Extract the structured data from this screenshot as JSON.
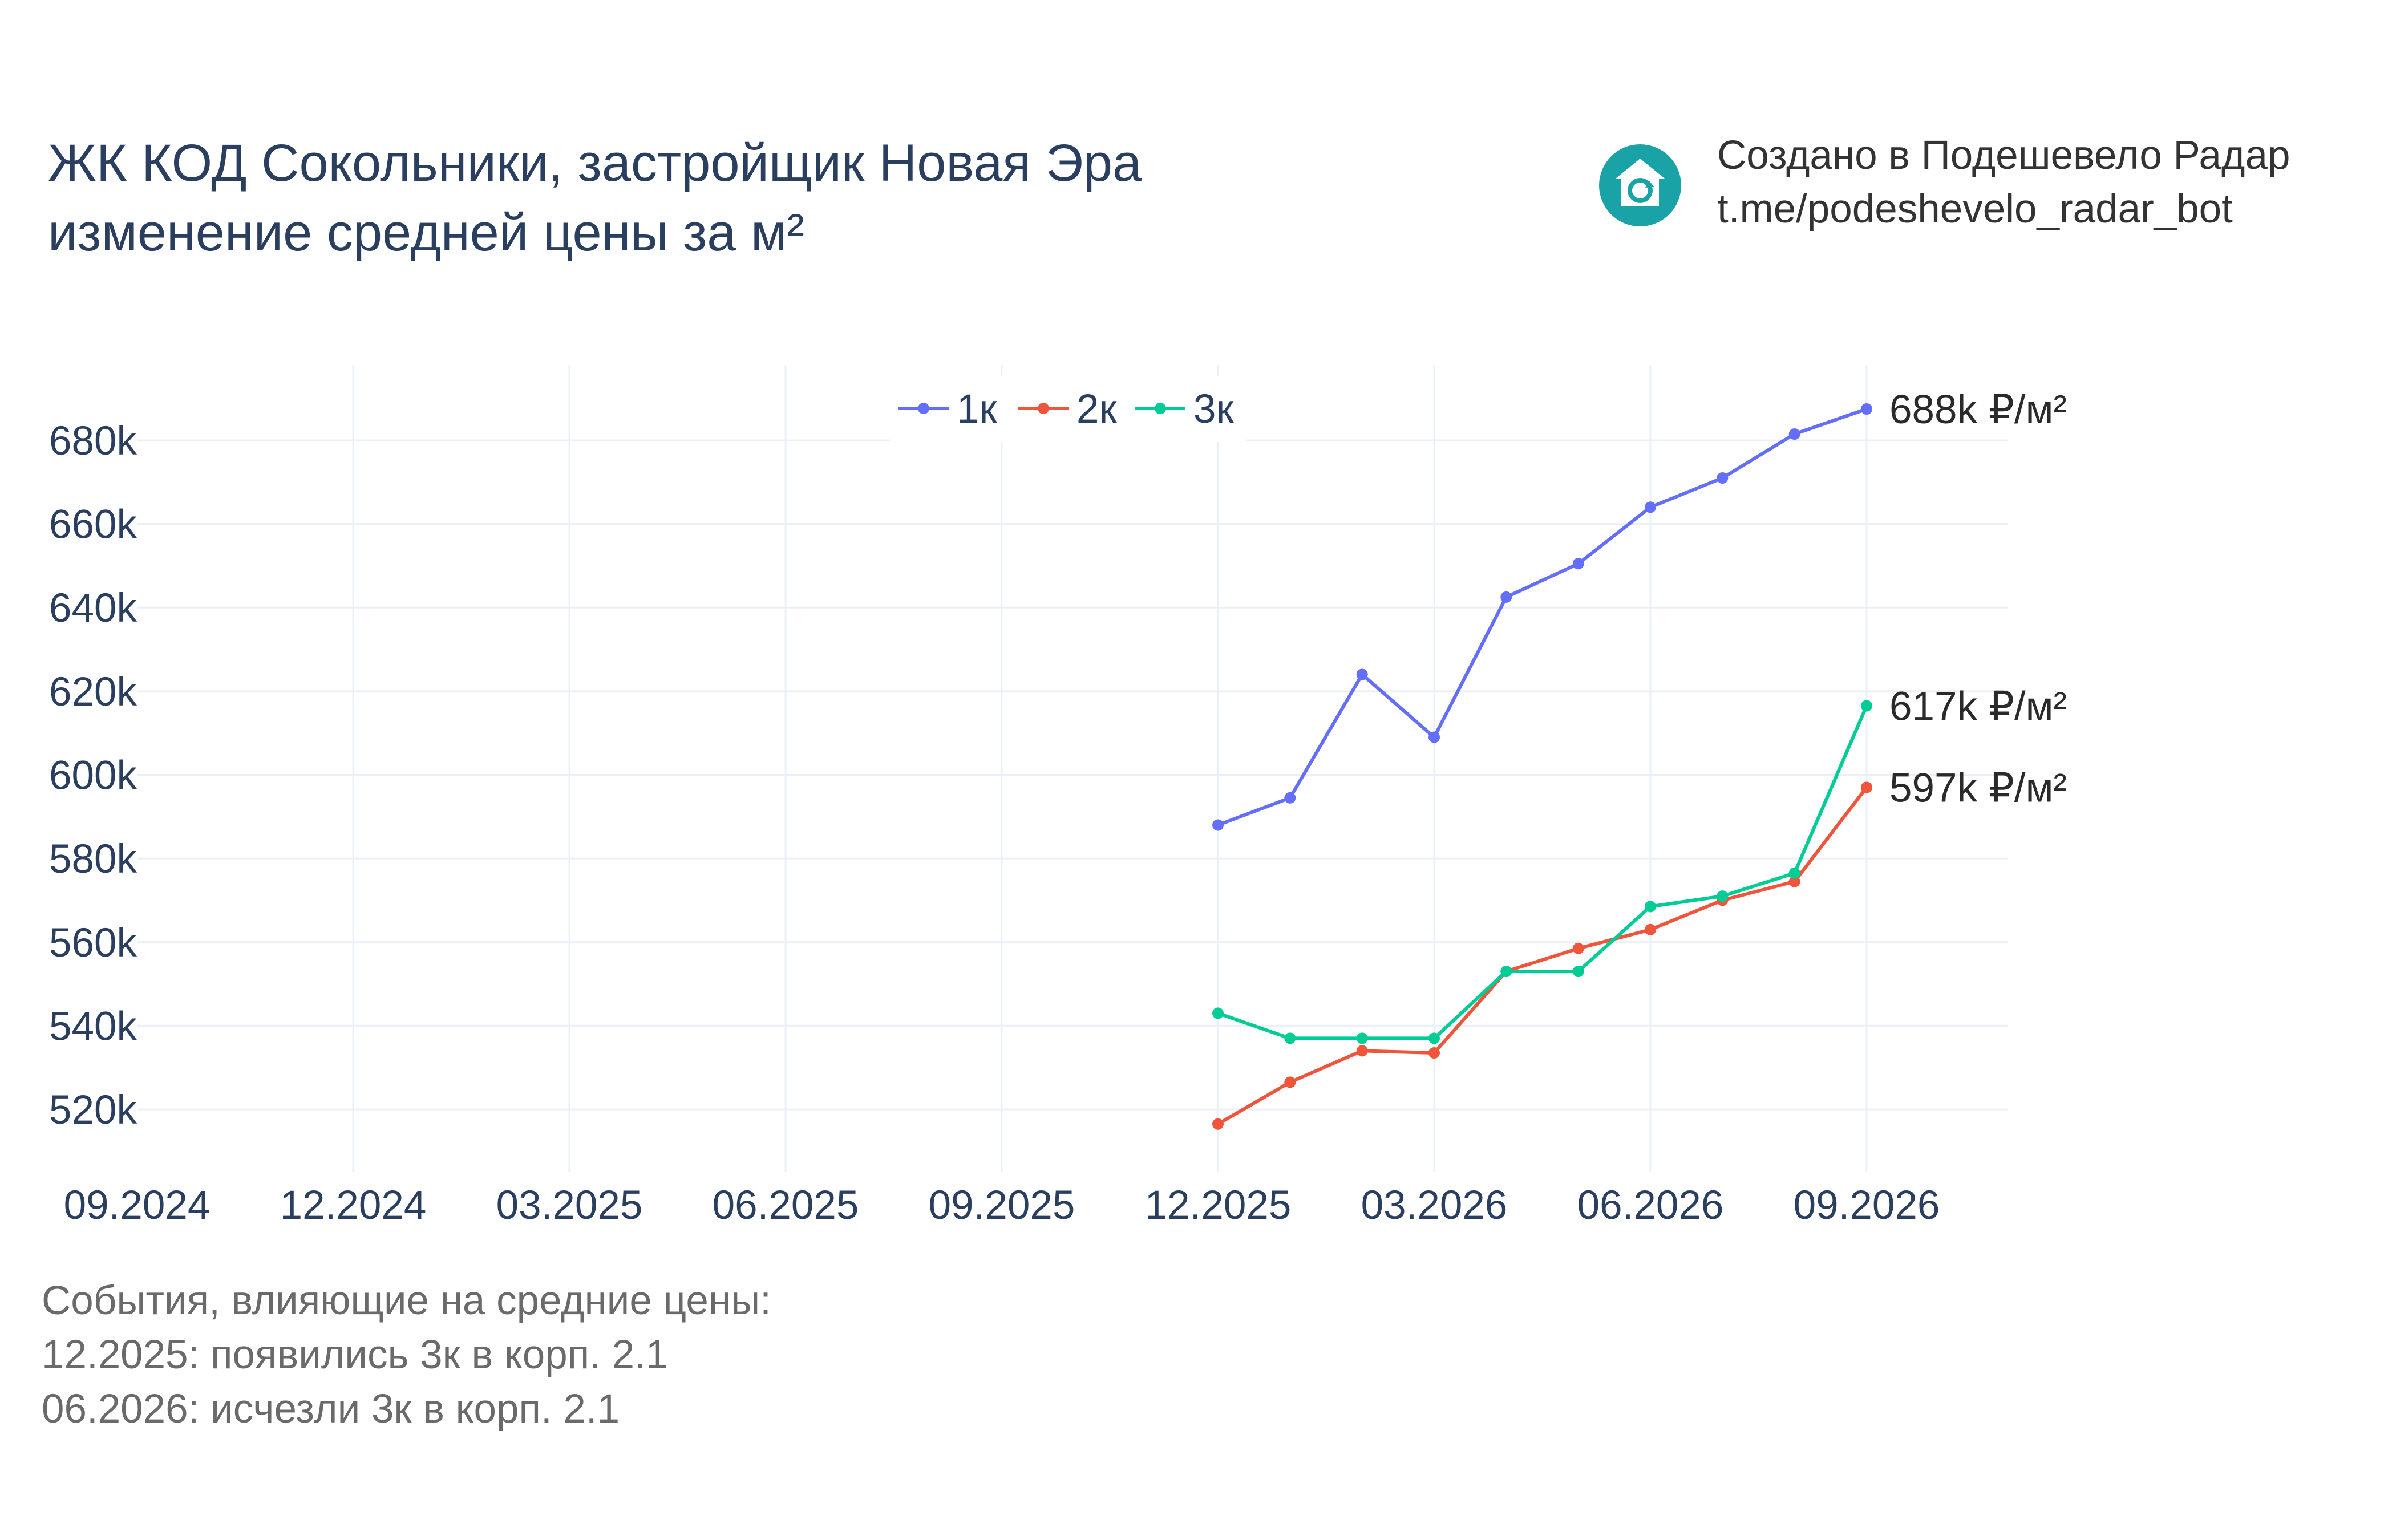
{
  "title_line1": "ЖК КОД Сокольники, застройщик Новая Эра",
  "title_line2": "изменение средней цены за м²",
  "brand": {
    "line1": "Создано в Подешевело Радар",
    "line2": "t.me/podeshevelo_radar_bot",
    "icon": "house-refresh-icon",
    "icon_color": "#1aa3a6"
  },
  "notes": {
    "header": "События, влияющие на средние цены:",
    "items": [
      "12.2025: появились 3к в корп. 2.1",
      "06.2026: исчезли 3к в корп. 2.1"
    ]
  },
  "chart_data": {
    "type": "line",
    "grid": true,
    "legend_placement": "top-center",
    "x_range": [
      "2024-09",
      "2026-11"
    ],
    "ylim": [
      505000,
      698000
    ],
    "x_ticks": [
      "09.2024",
      "12.2024",
      "03.2025",
      "06.2025",
      "09.2025",
      "12.2025",
      "03.2026",
      "06.2026",
      "09.2026"
    ],
    "y_ticks": [
      "520k",
      "540k",
      "560k",
      "580k",
      "600k",
      "620k",
      "640k",
      "660k",
      "680k"
    ],
    "x": [
      "2025-12",
      "2026-01",
      "2026-02",
      "2026-03",
      "2026-04",
      "2026-05",
      "2026-06",
      "2026-07",
      "2026-08",
      "2026-09"
    ],
    "series": [
      {
        "name": "1к",
        "color": "#636efa",
        "values": [
          588000,
          594500,
          624000,
          609000,
          642500,
          650500,
          664000,
          671000,
          681500,
          687500
        ],
        "end_label": "688k ₽/м²"
      },
      {
        "name": "2к",
        "color": "#ef553b",
        "values": [
          516500,
          526500,
          534000,
          533500,
          553000,
          558500,
          563000,
          570000,
          574500,
          597000
        ],
        "end_label": "597k ₽/м²"
      },
      {
        "name": "3к",
        "color": "#00cc96",
        "values": [
          543000,
          537000,
          537000,
          537000,
          553000,
          553000,
          568500,
          571000,
          576500,
          616500
        ],
        "end_label": "617k ₽/м²"
      }
    ]
  }
}
